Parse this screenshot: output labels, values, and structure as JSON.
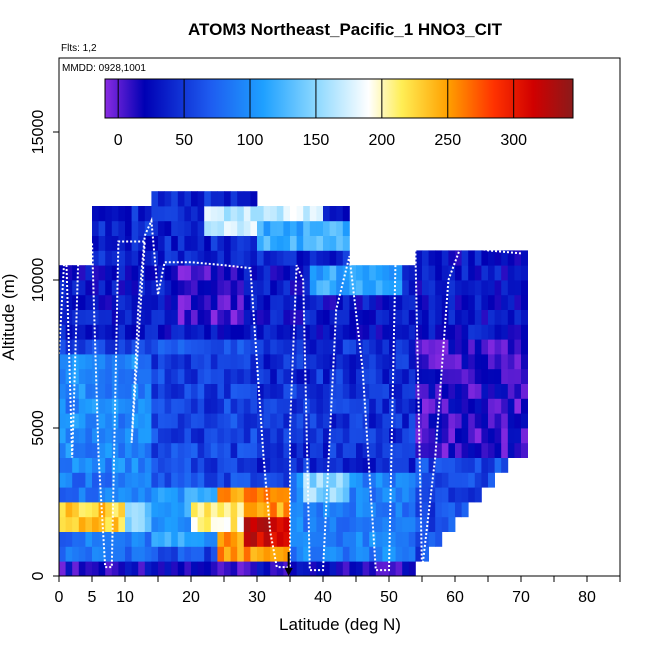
{
  "chart_data": {
    "type": "heatmap",
    "title": "ATOM3 Northeast_Pacific_1 HNO3_CIT",
    "flights_label": "Flts: 1,2",
    "dates_label": "MMDD: 0928,1001",
    "xlabel": "Latitude (deg N)",
    "ylabel": "Altitude (m)",
    "xlim": [
      0,
      85
    ],
    "ylim": [
      0,
      17500
    ],
    "x_ticks": [
      0,
      5,
      10,
      20,
      30,
      40,
      50,
      60,
      70,
      80
    ],
    "x_minor_ticks": [
      15,
      25,
      35,
      45,
      55,
      65,
      75,
      85
    ],
    "y_ticks": [
      0,
      5000,
      10000,
      15000
    ],
    "colorbar": {
      "min": -10,
      "max": 345,
      "ticks": [
        0,
        50,
        100,
        150,
        200,
        250,
        300
      ],
      "boundaries": [
        0,
        50,
        100,
        150,
        200,
        250,
        300
      ],
      "stops": [
        {
          "v": -10,
          "c": "#8a2be2"
        },
        {
          "v": 20,
          "c": "#0000b4"
        },
        {
          "v": 70,
          "c": "#1e5cf0"
        },
        {
          "v": 110,
          "c": "#1ea0ff"
        },
        {
          "v": 150,
          "c": "#8cd8ff"
        },
        {
          "v": 190,
          "c": "#ffffff"
        },
        {
          "v": 215,
          "c": "#ffee55"
        },
        {
          "v": 250,
          "c": "#ffa000"
        },
        {
          "v": 285,
          "c": "#ff3200"
        },
        {
          "v": 315,
          "c": "#d00000"
        },
        {
          "v": 345,
          "c": "#8b1a1a"
        }
      ]
    },
    "grid": {
      "lat_step": 1,
      "alt_step": 500
    },
    "coverage": [
      {
        "lat": [
          0,
          54
        ],
        "alt": [
          0,
          10500
        ]
      },
      {
        "lat": [
          54,
          71
        ],
        "alt": [
          4000,
          11000
        ]
      },
      {
        "lat": [
          5,
          44
        ],
        "alt": [
          10500,
          12500
        ]
      },
      {
        "lat": [
          14,
          30
        ],
        "alt": [
          12500,
          13000
        ]
      },
      {
        "lat": [
          54,
          56
        ],
        "alt": [
          500,
          4000
        ]
      },
      {
        "lat": [
          56,
          58
        ],
        "alt": [
          1000,
          4000
        ]
      },
      {
        "lat": [
          58,
          60
        ],
        "alt": [
          1500,
          4000
        ]
      },
      {
        "lat": [
          60,
          62
        ],
        "alt": [
          2000,
          4000
        ]
      },
      {
        "lat": [
          62,
          64
        ],
        "alt": [
          2500,
          4000
        ]
      },
      {
        "lat": [
          64,
          66
        ],
        "alt": [
          3000,
          4000
        ]
      },
      {
        "lat": [
          66,
          68
        ],
        "alt": [
          3500,
          4000
        ]
      }
    ],
    "regions": [
      {
        "lat": [
          0,
          85
        ],
        "alt": [
          0,
          500
        ],
        "value": 15
      },
      {
        "lat": [
          0,
          14
        ],
        "alt": [
          500,
          3500
        ],
        "value": 85
      },
      {
        "lat": [
          0,
          10
        ],
        "alt": [
          1500,
          2500
        ],
        "value": 230
      },
      {
        "lat": [
          10,
          14
        ],
        "alt": [
          1500,
          2500
        ],
        "value": 150
      },
      {
        "lat": [
          14,
          24
        ],
        "alt": [
          1000,
          3000
        ],
        "value": 110
      },
      {
        "lat": [
          24,
          35
        ],
        "alt": [
          500,
          3000
        ],
        "value": 250
      },
      {
        "lat": [
          28,
          35
        ],
        "alt": [
          800,
          1800
        ],
        "value": 320
      },
      {
        "lat": [
          20,
          28
        ],
        "alt": [
          1500,
          2500
        ],
        "value": 205
      },
      {
        "lat": [
          35,
          54
        ],
        "alt": [
          500,
          4000
        ],
        "value": 90
      },
      {
        "lat": [
          37,
          44
        ],
        "alt": [
          2500,
          3500
        ],
        "value": 150
      },
      {
        "lat": [
          0,
          14
        ],
        "alt": [
          3500,
          7500
        ],
        "value": 95
      },
      {
        "lat": [
          14,
          30
        ],
        "alt": [
          3500,
          7500
        ],
        "value": 55
      },
      {
        "lat": [
          30,
          54
        ],
        "alt": [
          3500,
          8000
        ],
        "value": 45
      },
      {
        "lat": [
          54,
          71
        ],
        "alt": [
          4000,
          8000
        ],
        "value": 10
      },
      {
        "lat": [
          0,
          71
        ],
        "alt": [
          8000,
          11000
        ],
        "value": 30
      },
      {
        "lat": [
          18,
          28
        ],
        "alt": [
          8500,
          10500
        ],
        "value": 5
      },
      {
        "lat": [
          38,
          52
        ],
        "alt": [
          9500,
          10500
        ],
        "value": 115
      },
      {
        "lat": [
          5,
          44
        ],
        "alt": [
          10500,
          13000
        ],
        "value": 40
      },
      {
        "lat": [
          22,
          40
        ],
        "alt": [
          11500,
          12500
        ],
        "value": 170
      },
      {
        "lat": [
          30,
          44
        ],
        "alt": [
          11000,
          12000
        ],
        "value": 120
      }
    ],
    "flight_track": [
      [
        0,
        7500
      ],
      [
        1,
        11500
      ],
      [
        2,
        4000
      ],
      [
        3,
        11300
      ],
      [
        5,
        11300
      ],
      [
        6,
        4000
      ],
      [
        7,
        300
      ],
      [
        8,
        300
      ],
      [
        9,
        11300
      ],
      [
        10,
        11300
      ],
      [
        11,
        11300
      ],
      [
        12,
        11300
      ],
      [
        13,
        11300
      ],
      [
        11,
        4500
      ],
      [
        12,
        9000
      ],
      [
        13,
        11500
      ],
      [
        14,
        12000
      ],
      [
        15,
        9500
      ],
      [
        16,
        10600
      ],
      [
        20,
        10600
      ],
      [
        25,
        10500
      ],
      [
        29,
        10400
      ],
      [
        31,
        4000
      ],
      [
        32,
        1500
      ],
      [
        33,
        300
      ],
      [
        35,
        300
      ],
      [
        35,
        5000
      ],
      [
        36,
        10500
      ],
      [
        37,
        10000
      ],
      [
        38,
        200
      ],
      [
        40,
        200
      ],
      [
        42,
        9000
      ],
      [
        44,
        10800
      ],
      [
        46,
        7000
      ],
      [
        48,
        200
      ],
      [
        50,
        200
      ],
      [
        51,
        10800
      ],
      [
        52,
        11000
      ],
      [
        54,
        11000
      ],
      [
        55,
        200
      ],
      [
        57,
        4000
      ],
      [
        59,
        10000
      ],
      [
        61,
        11200
      ],
      [
        65,
        11000
      ],
      [
        70,
        10900
      ]
    ],
    "marker": {
      "lat": 34.8,
      "alt": 0
    }
  }
}
